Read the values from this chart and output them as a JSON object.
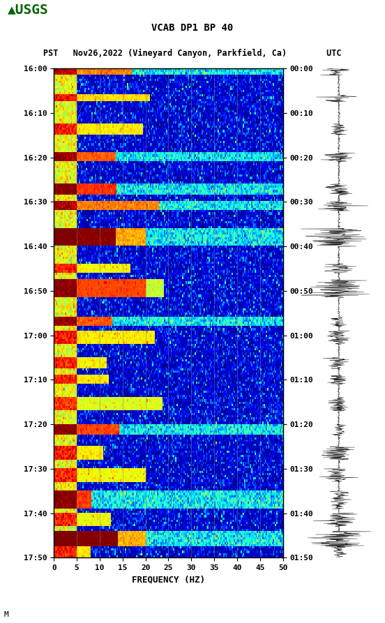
{
  "title_line1": "VCAB DP1 BP 40",
  "title_line2": "PST   Nov26,2022 (Vineyard Canyon, Parkfield, Ca)        UTC",
  "xlabel": "FREQUENCY (HZ)",
  "freq_min": 0,
  "freq_max": 50,
  "freq_ticks": [
    0,
    5,
    10,
    15,
    20,
    25,
    30,
    35,
    40,
    45,
    50
  ],
  "pst_labels": [
    "16:00",
    "16:10",
    "16:20",
    "16:30",
    "16:40",
    "16:50",
    "17:00",
    "17:10",
    "17:20",
    "17:30",
    "17:40",
    "17:50"
  ],
  "utc_labels": [
    "00:00",
    "00:10",
    "00:20",
    "00:30",
    "00:40",
    "00:50",
    "01:00",
    "01:10",
    "01:20",
    "01:30",
    "01:40",
    "01:50"
  ],
  "vert_grid_freqs": [
    5,
    10,
    15,
    20,
    25,
    30,
    35,
    40,
    45
  ],
  "background_color": "#ffffff",
  "usgs_color": "#006400",
  "fig_width": 5.52,
  "fig_height": 8.93,
  "n_times": 220,
  "n_freqs": 200
}
